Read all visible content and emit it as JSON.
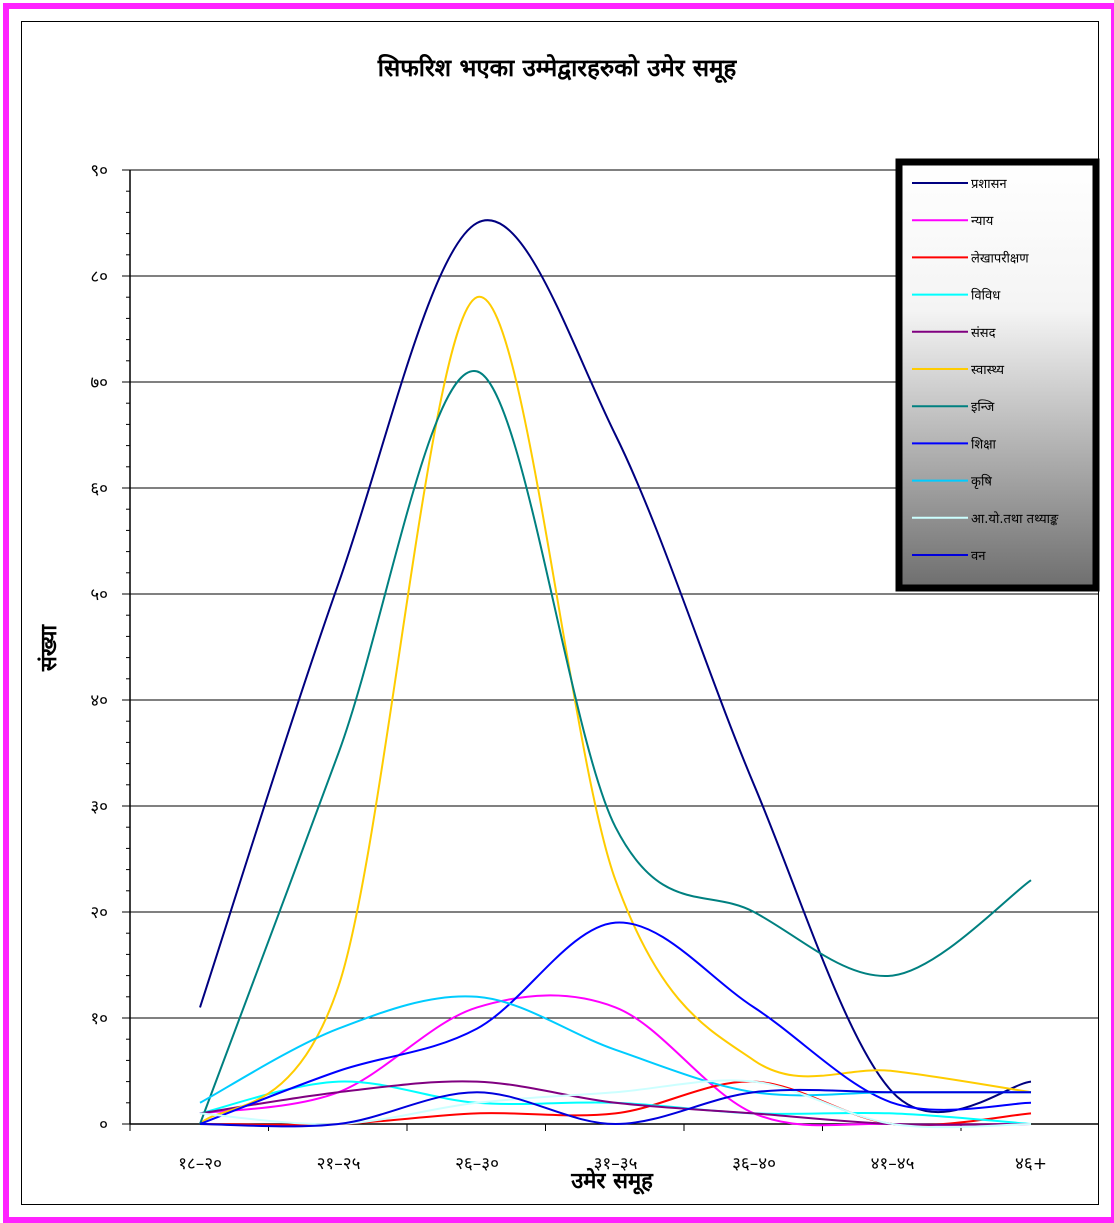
{
  "chart_data": {
    "type": "line",
    "title": "सिफरिश भएका उम्मेद्वारहरुको उमेर समूह",
    "xlabel": "उमेर समूह",
    "ylabel": "संख्या",
    "ylim": [
      0,
      90
    ],
    "yticks": [
      "०",
      "१०",
      "२०",
      "३०",
      "४०",
      "५०",
      "६०",
      "७०",
      "८०",
      "९०"
    ],
    "categories": [
      "१८–२०",
      "२१–२५",
      "२६–३०",
      "३१–३५",
      "३६–४०",
      "४१–४५",
      "४६+"
    ],
    "grid": true,
    "legend_position": "top-right",
    "series": [
      {
        "name": "प्रशासन",
        "color": "#000080",
        "values": [
          11,
          51,
          85,
          65,
          32,
          3,
          4
        ]
      },
      {
        "name": "न्याय",
        "color": "#ff00ff",
        "values": [
          1,
          3,
          11,
          11,
          1,
          0,
          0
        ]
      },
      {
        "name": "लेखापरीक्षण",
        "color": "#ff0000",
        "values": [
          0,
          0,
          1,
          1,
          4,
          0,
          1
        ]
      },
      {
        "name": "विविध",
        "color": "#00ffff",
        "values": [
          1,
          4,
          2,
          2,
          1,
          1,
          0
        ]
      },
      {
        "name": "संसद",
        "color": "#800080",
        "values": [
          1,
          3,
          4,
          2,
          1,
          0,
          0
        ]
      },
      {
        "name": "स्वास्थ्य",
        "color": "#ffcc00",
        "values": [
          0,
          13,
          78,
          23,
          6,
          5,
          3
        ]
      },
      {
        "name": "इन्जि",
        "color": "#008080",
        "values": [
          0,
          35,
          71,
          28,
          20,
          14,
          23
        ]
      },
      {
        "name": "शिक्षा",
        "color": "#0000ff",
        "values": [
          0,
          5,
          9,
          19,
          11,
          2,
          2
        ]
      },
      {
        "name": "कृषि",
        "color": "#00ccff",
        "values": [
          2,
          9,
          12,
          7,
          3,
          3,
          3
        ]
      },
      {
        "name": "आ.यो.तथा तथ्याङ्क",
        "color": "#ccffff",
        "values": [
          1,
          0,
          2,
          3,
          4,
          0,
          0
        ]
      },
      {
        "name": "वन",
        "color": "#0000dd",
        "values": [
          0,
          0,
          3,
          0,
          3,
          3,
          3
        ]
      }
    ]
  }
}
